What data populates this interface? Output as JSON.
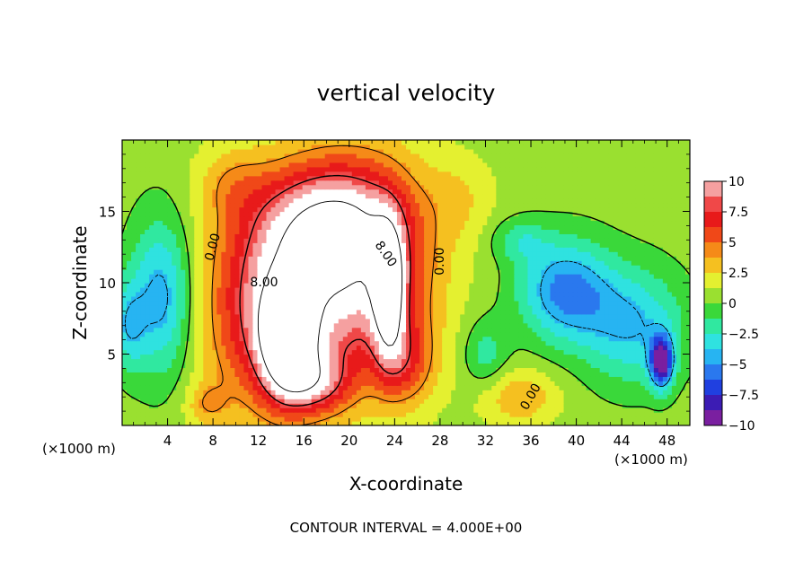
{
  "chart_data": {
    "type": "heatmap",
    "title": "vertical velocity",
    "xlabel": "X-coordinate",
    "ylabel": "Z-coordinate",
    "x_unit_left": "(×1000 m)",
    "x_unit_right": "(×1000 m)",
    "footer": "CONTOUR INTERVAL = 4.000E+00",
    "xlim": [
      0,
      50
    ],
    "ylim": [
      0,
      20
    ],
    "x_ticks": [
      4,
      8,
      12,
      16,
      20,
      24,
      28,
      32,
      36,
      40,
      44,
      48
    ],
    "y_ticks": [
      5,
      10,
      15
    ],
    "colorbar": {
      "range": [
        -10,
        10
      ],
      "tick_values": [
        10,
        7.5,
        5,
        2.5,
        0,
        -2.5,
        -5,
        -7.5,
        -10
      ],
      "tick_labels": [
        "10",
        "7.5",
        "5",
        "2.5",
        "0",
        "−2.5",
        "−5",
        "−7.5",
        "−10"
      ]
    },
    "contour_labels": [
      {
        "text": "0.00",
        "x": 8.0,
        "y": 12.5,
        "angle": -75
      },
      {
        "text": "8.00",
        "x": 12.5,
        "y": 10.0,
        "angle": 0
      },
      {
        "text": "8.00",
        "x": 23.2,
        "y": 12.0,
        "angle": 55
      },
      {
        "text": "0.00",
        "x": 28.0,
        "y": 11.5,
        "angle": -90
      },
      {
        "text": "0.00",
        "x": 36.0,
        "y": 2.0,
        "angle": -60
      }
    ],
    "features": [
      {
        "x": 13.5,
        "z": 8.5,
        "w": 9.0,
        "rx": 6.0,
        "rz": 7.5
      },
      {
        "x": 21.5,
        "z": 11.0,
        "w": 8.0,
        "rx": 6.0,
        "rz": 7.5
      },
      {
        "x": 18.0,
        "z": 14.5,
        "w": 6.0,
        "rx": 6.0,
        "rz": 4.0
      },
      {
        "x": 14.5,
        "z": 6.0,
        "w": 11.0,
        "rx": 2.2,
        "rz": 3.5
      },
      {
        "x": 23.5,
        "z": 9.5,
        "w": 9.0,
        "rx": 1.4,
        "rz": 4.5
      },
      {
        "x": 17.0,
        "z": 3.0,
        "w": 5.0,
        "rx": 3.0,
        "rz": 2.0
      },
      {
        "x": 25.0,
        "z": 4.5,
        "w": 4.0,
        "rx": 2.5,
        "rz": 3.0
      },
      {
        "x": 3.5,
        "z": 9.0,
        "w": -5.5,
        "rx": 2.8,
        "rz": 5.5
      },
      {
        "x": 0.5,
        "z": 7.0,
        "w": -3.5,
        "rx": 1.5,
        "rz": 3.0
      },
      {
        "x": 39.0,
        "z": 9.5,
        "w": -6.0,
        "rx": 4.0,
        "rz": 3.5
      },
      {
        "x": 45.0,
        "z": 7.0,
        "w": -4.5,
        "rx": 4.5,
        "rz": 4.0
      },
      {
        "x": 47.5,
        "z": 4.5,
        "w": -9.5,
        "rx": 1.0,
        "rz": 1.8
      },
      {
        "x": 35.0,
        "z": 13.0,
        "w": -2.5,
        "rx": 2.5,
        "rz": 1.5
      },
      {
        "x": 35.0,
        "z": 2.0,
        "w": 3.0,
        "rx": 3.5,
        "rz": 2.0
      },
      {
        "x": 7.5,
        "z": 1.5,
        "w": 2.5,
        "rx": 1.8,
        "rz": 1.5
      },
      {
        "x": 32.0,
        "z": 5.0,
        "w": -2.5,
        "rx": 2.0,
        "rz": 2.5
      },
      {
        "x": 30.0,
        "z": 16.0,
        "w": 1.5,
        "rx": 3.0,
        "rz": 3.0
      },
      {
        "x": 9.5,
        "z": 17.0,
        "w": 2.0,
        "rx": 3.0,
        "rz": 2.5
      }
    ],
    "palette": [
      "#7a1fa0",
      "#3c1cb4",
      "#2040e0",
      "#2a78ee",
      "#27b4f2",
      "#2fe2e0",
      "#30e8a0",
      "#3ad83a",
      "#9ae030",
      "#e4f030",
      "#f5c020",
      "#f58a18",
      "#f04818",
      "#e81a1a",
      "#f04848",
      "#f5a0a0",
      "#ffffff"
    ]
  }
}
